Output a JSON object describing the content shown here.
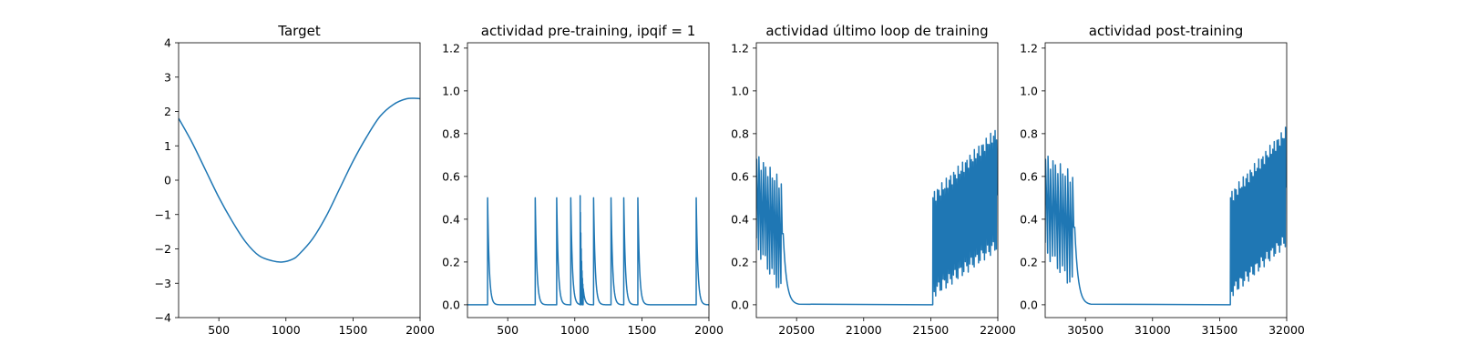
{
  "chart_data": [
    {
      "type": "line",
      "title": "Target",
      "xlim": [
        200,
        2000
      ],
      "ylim": [
        -4,
        4
      ],
      "xticks": [
        500,
        1000,
        1500,
        2000
      ],
      "yticks": [
        -4,
        -3,
        -2,
        -1,
        0,
        1,
        2,
        3,
        4
      ],
      "color": "#1f77b4",
      "series": [
        {
          "x": [
            200,
            300,
            400,
            500,
            600,
            700,
            800,
            900,
            975,
            1050,
            1100,
            1200,
            1300,
            1400,
            1500,
            1600,
            1700,
            1800,
            1900,
            1975,
            2000
          ],
          "y": [
            1.8,
            1.1,
            0.3,
            -0.5,
            -1.2,
            -1.8,
            -2.2,
            -2.35,
            -2.38,
            -2.3,
            -2.15,
            -1.7,
            -1.05,
            -0.25,
            0.55,
            1.25,
            1.85,
            2.2,
            2.37,
            2.38,
            2.37
          ]
        }
      ]
    },
    {
      "type": "line",
      "title": "actividad pre-training, ipqif = 1",
      "xlim": [
        200,
        2000
      ],
      "ylim": [
        -0.06,
        1.225
      ],
      "xticks": [
        500,
        1000,
        1500,
        2000
      ],
      "yticks": [
        0.0,
        0.2,
        0.4,
        0.6,
        0.8,
        1.0,
        1.2
      ],
      "color": "#1f77b4",
      "series": [
        {
          "spikes": [
            [
              350,
              0.5
            ],
            [
              705,
              0.5
            ],
            [
              865,
              0.5
            ],
            [
              970,
              0.5
            ],
            [
              1040,
              0.51
            ],
            [
              1140,
              0.5
            ],
            [
              1270,
              0.5
            ],
            [
              1365,
              0.5
            ],
            [
              1470,
              0.5
            ],
            [
              1905,
              0.5
            ]
          ],
          "baseline": 0.0
        }
      ]
    },
    {
      "type": "line",
      "title": "actividad último loop de training",
      "xlim": [
        20200,
        22000
      ],
      "ylim": [
        -0.06,
        1.225
      ],
      "xticks": [
        20500,
        21000,
        21500,
        22000
      ],
      "yticks": [
        0.0,
        0.2,
        0.4,
        0.6,
        0.8,
        1.0,
        1.2
      ],
      "color": "#1f77b4",
      "series": [
        {
          "burst1": {
            "start": 20200,
            "end": 20400,
            "peak_start": 0.68,
            "peak_end": 0.56,
            "trough_start": 0.28,
            "trough_end": 0.07,
            "cycles": 12
          },
          "burst2": {
            "start": 21515,
            "end": 22000,
            "peak_start": 0.5,
            "peak_end": 0.8,
            "trough_start": 0.06,
            "trough_end": 0.28,
            "cycles": 44
          },
          "baseline": 0.0
        }
      ]
    },
    {
      "type": "line",
      "title": "actividad post-training",
      "xlim": [
        30200,
        32000
      ],
      "ylim": [
        -0.06,
        1.225
      ],
      "xticks": [
        30500,
        31000,
        31500,
        32000
      ],
      "yticks": [
        0.0,
        0.2,
        0.4,
        0.6,
        0.8,
        1.0,
        1.2
      ],
      "color": "#1f77b4",
      "series": [
        {
          "burst1": {
            "start": 30200,
            "end": 30420,
            "peak_start": 0.68,
            "peak_end": 0.59,
            "trough_start": 0.26,
            "trough_end": 0.1,
            "cycles": 12
          },
          "burst2": {
            "start": 31580,
            "end": 32000,
            "peak_start": 0.5,
            "peak_end": 0.8,
            "trough_start": 0.06,
            "trough_end": 0.3,
            "cycles": 40
          },
          "baseline": 0.0
        }
      ]
    }
  ]
}
